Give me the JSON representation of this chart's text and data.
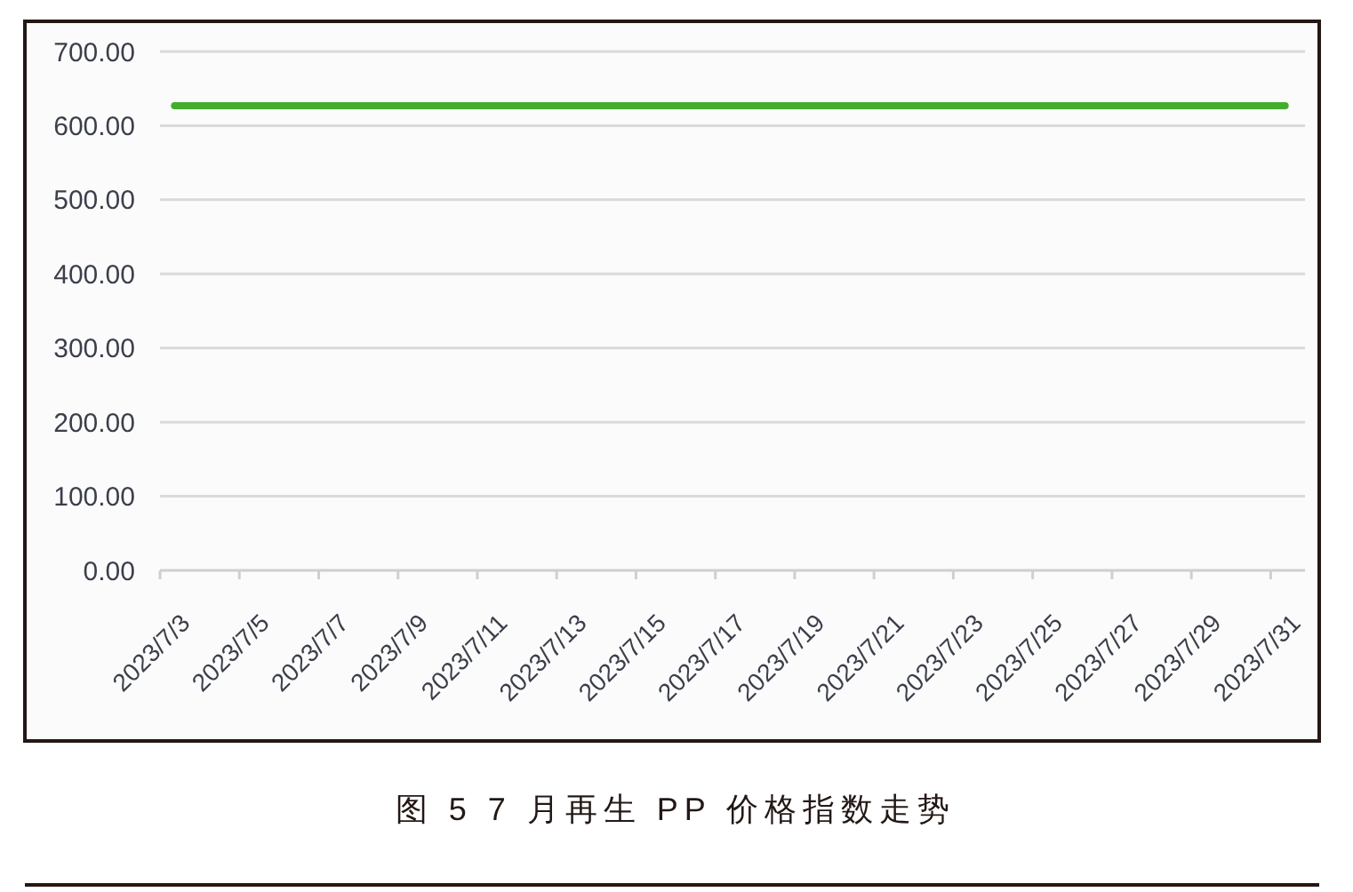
{
  "chart_data": {
    "type": "line",
    "title": "图 5 7 月再生 PP 价格指数走势",
    "categories": [
      "2023/7/3",
      null,
      "2023/7/5",
      null,
      "2023/7/7",
      null,
      "2023/7/9",
      null,
      "2023/7/11",
      null,
      "2023/7/13",
      null,
      "2023/7/15",
      null,
      "2023/7/17",
      null,
      "2023/7/19",
      null,
      "2023/7/21",
      null,
      "2023/7/23",
      null,
      "2023/7/25",
      null,
      "2023/7/27",
      null,
      "2023/7/29",
      null,
      "2023/7/31"
    ],
    "series": [
      {
        "color": "#45ad2c",
        "values": [
          627,
          627,
          627,
          627,
          627,
          627,
          627,
          627,
          627,
          627,
          627,
          627,
          627,
          627,
          627,
          627,
          627,
          627,
          627,
          627,
          627,
          627,
          627,
          627,
          627,
          627,
          627,
          627,
          627
        ]
      }
    ],
    "ylim": [
      0,
      700
    ],
    "yticks": [
      {
        "value": 0,
        "label": "0.00"
      },
      {
        "value": 100,
        "label": "100.00"
      },
      {
        "value": 200,
        "label": "200.00"
      },
      {
        "value": 300,
        "label": "300.00"
      },
      {
        "value": 400,
        "label": "400.00"
      },
      {
        "value": 500,
        "label": "500.00"
      },
      {
        "value": 600,
        "label": "600.00"
      },
      {
        "value": 700,
        "label": "700.00"
      }
    ],
    "grid": "y"
  }
}
